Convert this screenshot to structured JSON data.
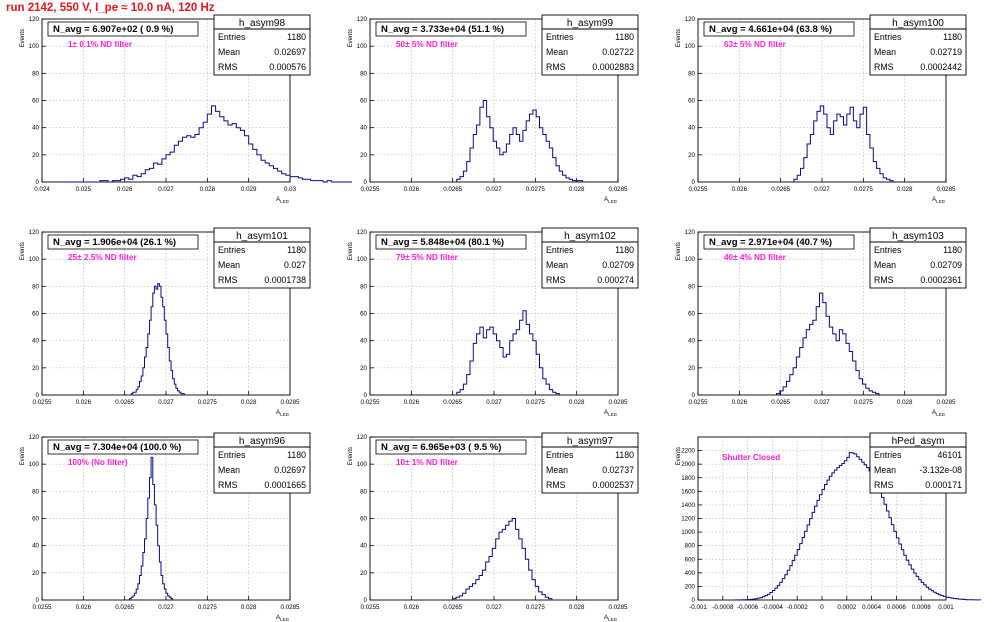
{
  "page": {
    "title": "run 2142,   550 V, I_pe ≈ 10.0 nA, 120 Hz"
  },
  "chart_data": [
    {
      "type": "bar",
      "name": "h_asym98",
      "xlabel": "A_LED",
      "ylabel": "Events",
      "xlim": [
        0.024,
        0.03
      ],
      "ylim": [
        0,
        120
      ],
      "xticks": [
        "0.024",
        "0.025",
        "0.026",
        "0.027",
        "0.028",
        "0.029",
        "0.03"
      ],
      "yticks": [
        "0",
        "20",
        "40",
        "60",
        "80",
        "100",
        "120"
      ],
      "stats": {
        "Entries": "1180",
        "Mean": "0.02697",
        "RMS": "0.000576"
      },
      "navg": "N_avg = 6.907e+02 ( 0.9 %)",
      "filter": "1± 0.1% ND filter",
      "bins": {
        "start": 0.0245,
        "width": 0.0001,
        "values": [
          0,
          0,
          0,
          0,
          0,
          0,
          0,
          0,
          0,
          1,
          1,
          0,
          1,
          1,
          2,
          3,
          2,
          5,
          4,
          6,
          9,
          10,
          14,
          13,
          17,
          20,
          22,
          27,
          30,
          33,
          34,
          33,
          35,
          40,
          44,
          50,
          56,
          52,
          48,
          45,
          42,
          43,
          40,
          38,
          34,
          28,
          24,
          20,
          16,
          14,
          12,
          10,
          8,
          6,
          5,
          4,
          4,
          3,
          2,
          2,
          1,
          1,
          1,
          0,
          1,
          0,
          0,
          0,
          0,
          0
        ]
      }
    },
    {
      "type": "bar",
      "name": "h_asym99",
      "xlabel": "A_LED",
      "ylabel": "Events",
      "xlim": [
        0.0255,
        0.0285
      ],
      "ylim": [
        0,
        120
      ],
      "xticks": [
        "0.0255",
        "0.026",
        "0.0265",
        "0.027",
        "0.0275",
        "0.028",
        "0.0285"
      ],
      "yticks": [
        "0",
        "20",
        "40",
        "60",
        "80",
        "100",
        "120"
      ],
      "stats": {
        "Entries": "1180",
        "Mean": "0.02722",
        "RMS": "0.0002883"
      },
      "navg": "N_avg = 3.733e+04 (51.1 %)",
      "filter": "50± 5% ND filter",
      "bins": {
        "start": 0.02655,
        "width": 4e-05,
        "values": [
          2,
          4,
          8,
          15,
          25,
          35,
          42,
          55,
          60,
          48,
          40,
          30,
          25,
          20,
          22,
          28,
          35,
          40,
          35,
          30,
          38,
          45,
          50,
          53,
          48,
          40,
          35,
          30,
          25,
          18,
          12,
          8,
          5,
          3,
          2,
          1,
          1,
          1
        ]
      }
    },
    {
      "type": "bar",
      "name": "h_asym100",
      "xlabel": "A_LED",
      "ylabel": "Events",
      "xlim": [
        0.0255,
        0.0285
      ],
      "ylim": [
        0,
        120
      ],
      "xticks": [
        "0.0255",
        "0.026",
        "0.0265",
        "0.027",
        "0.0275",
        "0.028",
        "0.0285"
      ],
      "yticks": [
        "0",
        "20",
        "40",
        "60",
        "80",
        "100",
        "120"
      ],
      "stats": {
        "Entries": "1180",
        "Mean": "0.02719",
        "RMS": "0.0002442"
      },
      "navg": "N_avg = 4.661e+04 (63.8 %)",
      "filter": "63± 5% ND filter",
      "bins": {
        "start": 0.02666,
        "width": 4e-05,
        "values": [
          2,
          5,
          10,
          18,
          28,
          35,
          45,
          52,
          56,
          50,
          40,
          35,
          45,
          50,
          48,
          42,
          50,
          55,
          45,
          40,
          50,
          55,
          35,
          25,
          15,
          10,
          6,
          3,
          2,
          1
        ]
      }
    },
    {
      "type": "bar",
      "name": "h_asym101",
      "xlabel": "A_LED",
      "ylabel": "Events",
      "xlim": [
        0.0255,
        0.0285
      ],
      "ylim": [
        0,
        120
      ],
      "xticks": [
        "0.0255",
        "0.026",
        "0.0265",
        "0.027",
        "0.0275",
        "0.028",
        "0.0285"
      ],
      "yticks": [
        "0",
        "20",
        "40",
        "60",
        "80",
        "100",
        "120"
      ],
      "stats": {
        "Entries": "1180",
        "Mean": "0.027",
        "RMS": "0.0001738"
      },
      "navg": "N_avg = 1.906e+04 (26.1 %)",
      "filter": "25± 2.5% ND filter",
      "bins": {
        "start": 0.02658,
        "width": 2e-05,
        "values": [
          1,
          2,
          2,
          4,
          6,
          10,
          14,
          20,
          28,
          35,
          45,
          55,
          65,
          75,
          80,
          78,
          82,
          80,
          72,
          65,
          55,
          45,
          35,
          25,
          18,
          12,
          8,
          5,
          3,
          2,
          1,
          1
        ]
      }
    },
    {
      "type": "bar",
      "name": "h_asym102",
      "xlabel": "A_LED",
      "ylabel": "Events",
      "xlim": [
        0.0255,
        0.0285
      ],
      "ylim": [
        0,
        120
      ],
      "xticks": [
        "0.0255",
        "0.026",
        "0.0265",
        "0.027",
        "0.0275",
        "0.028",
        "0.0285"
      ],
      "yticks": [
        "0",
        "20",
        "40",
        "60",
        "80",
        "100",
        "120"
      ],
      "stats": {
        "Entries": "1180",
        "Mean": "0.02709",
        "RMS": "0.000274"
      },
      "navg": "N_avg = 5.848e+04 (80.1 %)",
      "filter": "79± 5% ND filter",
      "bins": {
        "start": 0.02655,
        "width": 4e-05,
        "values": [
          2,
          4,
          8,
          15,
          25,
          38,
          45,
          50,
          42,
          48,
          50,
          45,
          40,
          35,
          28,
          30,
          40,
          45,
          48,
          55,
          62,
          52,
          45,
          40,
          30,
          20,
          12,
          8,
          4,
          2,
          1
        ]
      }
    },
    {
      "type": "bar",
      "name": "h_asym103",
      "xlabel": "A_LED",
      "ylabel": "Events",
      "xlim": [
        0.0255,
        0.0285
      ],
      "ylim": [
        0,
        120
      ],
      "xticks": [
        "0.0255",
        "0.026",
        "0.0265",
        "0.027",
        "0.0275",
        "0.028",
        "0.0285"
      ],
      "yticks": [
        "0",
        "20",
        "40",
        "60",
        "80",
        "100",
        "120"
      ],
      "stats": {
        "Entries": "1180",
        "Mean": "0.02709",
        "RMS": "0.0002361"
      },
      "navg": "N_avg = 2.971e+04 (40.7 %)",
      "filter": "40± 4% ND filter",
      "bins": {
        "start": 0.02645,
        "width": 4e-05,
        "values": [
          1,
          3,
          6,
          10,
          15,
          20,
          28,
          35,
          42,
          48,
          52,
          55,
          65,
          75,
          68,
          58,
          50,
          45,
          40,
          48,
          45,
          38,
          32,
          25,
          18,
          12,
          8,
          5,
          3,
          2,
          1
        ]
      }
    },
    {
      "type": "bar",
      "name": "h_asym96",
      "xlabel": "A_LED",
      "ylabel": "Events",
      "xlim": [
        0.0255,
        0.0285
      ],
      "ylim": [
        0,
        120
      ],
      "xticks": [
        "0.0255",
        "0.026",
        "0.0265",
        "0.027",
        "0.0275",
        "0.028",
        "0.0285"
      ],
      "yticks": [
        "0",
        "20",
        "40",
        "60",
        "80",
        "100",
        "120"
      ],
      "stats": {
        "Entries": "1180",
        "Mean": "0.02697",
        "RMS": "0.0001665"
      },
      "navg": "N_avg = 7.304e+04 (100.0 %)",
      "filter": "100% (No filter)",
      "bins": {
        "start": 0.02656,
        "width": 2e-05,
        "values": [
          1,
          2,
          3,
          5,
          8,
          12,
          18,
          25,
          35,
          45,
          60,
          75,
          90,
          105,
          85,
          70,
          55,
          40,
          28,
          18,
          12,
          8,
          5,
          3,
          2,
          1
        ]
      }
    },
    {
      "type": "bar",
      "name": "h_asym97",
      "xlabel": "A_LED",
      "ylabel": "Events",
      "xlim": [
        0.0255,
        0.0285
      ],
      "ylim": [
        0,
        120
      ],
      "xticks": [
        "0.0255",
        "0.026",
        "0.0265",
        "0.027",
        "0.0275",
        "0.028",
        "0.0285"
      ],
      "yticks": [
        "0",
        "20",
        "40",
        "60",
        "80",
        "100",
        "120"
      ],
      "stats": {
        "Entries": "1180",
        "Mean": "0.02737",
        "RMS": "0.0002537"
      },
      "navg": "N_avg = 6.965e+03 ( 9.5 %)",
      "filter": "10± 1% ND filter",
      "bins": {
        "start": 0.0265,
        "width": 4e-05,
        "values": [
          1,
          2,
          3,
          5,
          8,
          10,
          12,
          15,
          18,
          22,
          28,
          32,
          38,
          45,
          50,
          52,
          55,
          58,
          60,
          52,
          45,
          38,
          30,
          22,
          15,
          10,
          6,
          4,
          2,
          1
        ]
      }
    },
    {
      "type": "bar",
      "name": "hPed_asym",
      "xlabel": "",
      "ylabel": "Events",
      "xlim": [
        -0.001,
        0.001
      ],
      "ylim": [
        0,
        2400
      ],
      "xticks": [
        "-0.001",
        "-0.0008",
        "-0.0006",
        "-0.0004",
        "-0.0002",
        "0",
        "0.0002",
        "0.0004",
        "0.0006",
        "0.0008",
        "0.001"
      ],
      "yticks": [
        "0",
        "200",
        "400",
        "600",
        "800",
        "1000",
        "1200",
        "1400",
        "1600",
        "1800",
        "2000",
        "2200"
      ],
      "stats": {
        "Entries": "46101",
        "Mean": "-3.132e-08",
        "RMS": "0.000171"
      },
      "navg": "",
      "filter": "Shutter Closed",
      "bins": {
        "start": -0.0007,
        "width": 2e-05,
        "values": [
          1,
          1,
          2,
          3,
          4,
          6,
          9,
          13,
          18,
          26,
          36,
          50,
          66,
          86,
          110,
          140,
          175,
          215,
          262,
          315,
          373,
          437,
          506,
          580,
          660,
          743,
          830,
          920,
          1012,
          1105,
          1198,
          1290,
          1380,
          1467,
          1550,
          1628,
          1700,
          1765,
          1823,
          1872,
          1912,
          1950,
          1980,
          2010,
          2050,
          2100,
          2170,
          2165,
          2150,
          2110,
          2070,
          2030,
          1990,
          1950,
          1900,
          1840,
          1770,
          1690,
          1600,
          1510,
          1410,
          1310,
          1210,
          1110,
          1010,
          915,
          825,
          740,
          660,
          586,
          517,
          455,
          398,
          347,
          300,
          259,
          222,
          189,
          160,
          135,
          113,
          94,
          78,
          65,
          53,
          43,
          35,
          28,
          22,
          17,
          13,
          10,
          7,
          5,
          4,
          3,
          2,
          1,
          1
        ]
      }
    }
  ]
}
